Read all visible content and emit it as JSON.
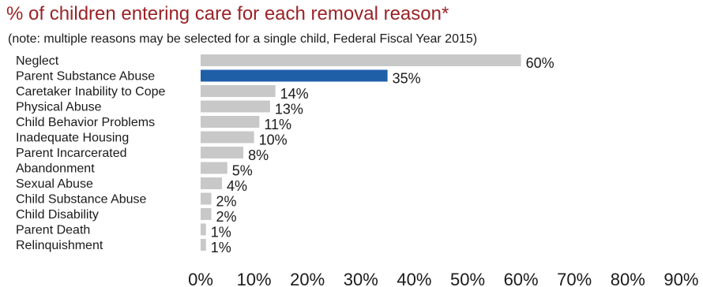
{
  "title": "% of children entering care for each removal reason*",
  "subtitle": "(note: multiple reasons may be selected for a single child, Federal Fiscal Year 2015)",
  "colors": {
    "highlight": "#1f5fa8",
    "default_bar": "#c8c8c8",
    "title": "#9b2226"
  },
  "chart_data": {
    "type": "bar",
    "orientation": "horizontal",
    "categories": [
      "Neglect",
      "Parent Substance Abuse",
      "Caretaker Inability to Cope",
      "Physical Abuse",
      "Child Behavior Problems",
      "Inadequate Housing",
      "Parent Incarcerated",
      "Abandonment",
      "Sexual Abuse",
      "Child Substance Abuse",
      "Child Disability",
      "Parent Death",
      "Relinquishment"
    ],
    "values": [
      60,
      35,
      14,
      13,
      11,
      10,
      8,
      5,
      4,
      2,
      2,
      1,
      1
    ],
    "value_labels": [
      "60%",
      "35%",
      "14%",
      "13%",
      "11%",
      "10%",
      "8%",
      "5%",
      "4%",
      "2%",
      "2%",
      "1%",
      "1%"
    ],
    "highlighted_category": "Parent Substance Abuse",
    "x_ticks": [
      0,
      10,
      20,
      30,
      40,
      50,
      60,
      70,
      80,
      90
    ],
    "x_tick_labels": [
      "0%",
      "10%",
      "20%",
      "30%",
      "40%",
      "50%",
      "60%",
      "70%",
      "80%",
      "90%"
    ],
    "xlim": [
      0,
      90
    ],
    "grid": false,
    "legend": "none"
  }
}
